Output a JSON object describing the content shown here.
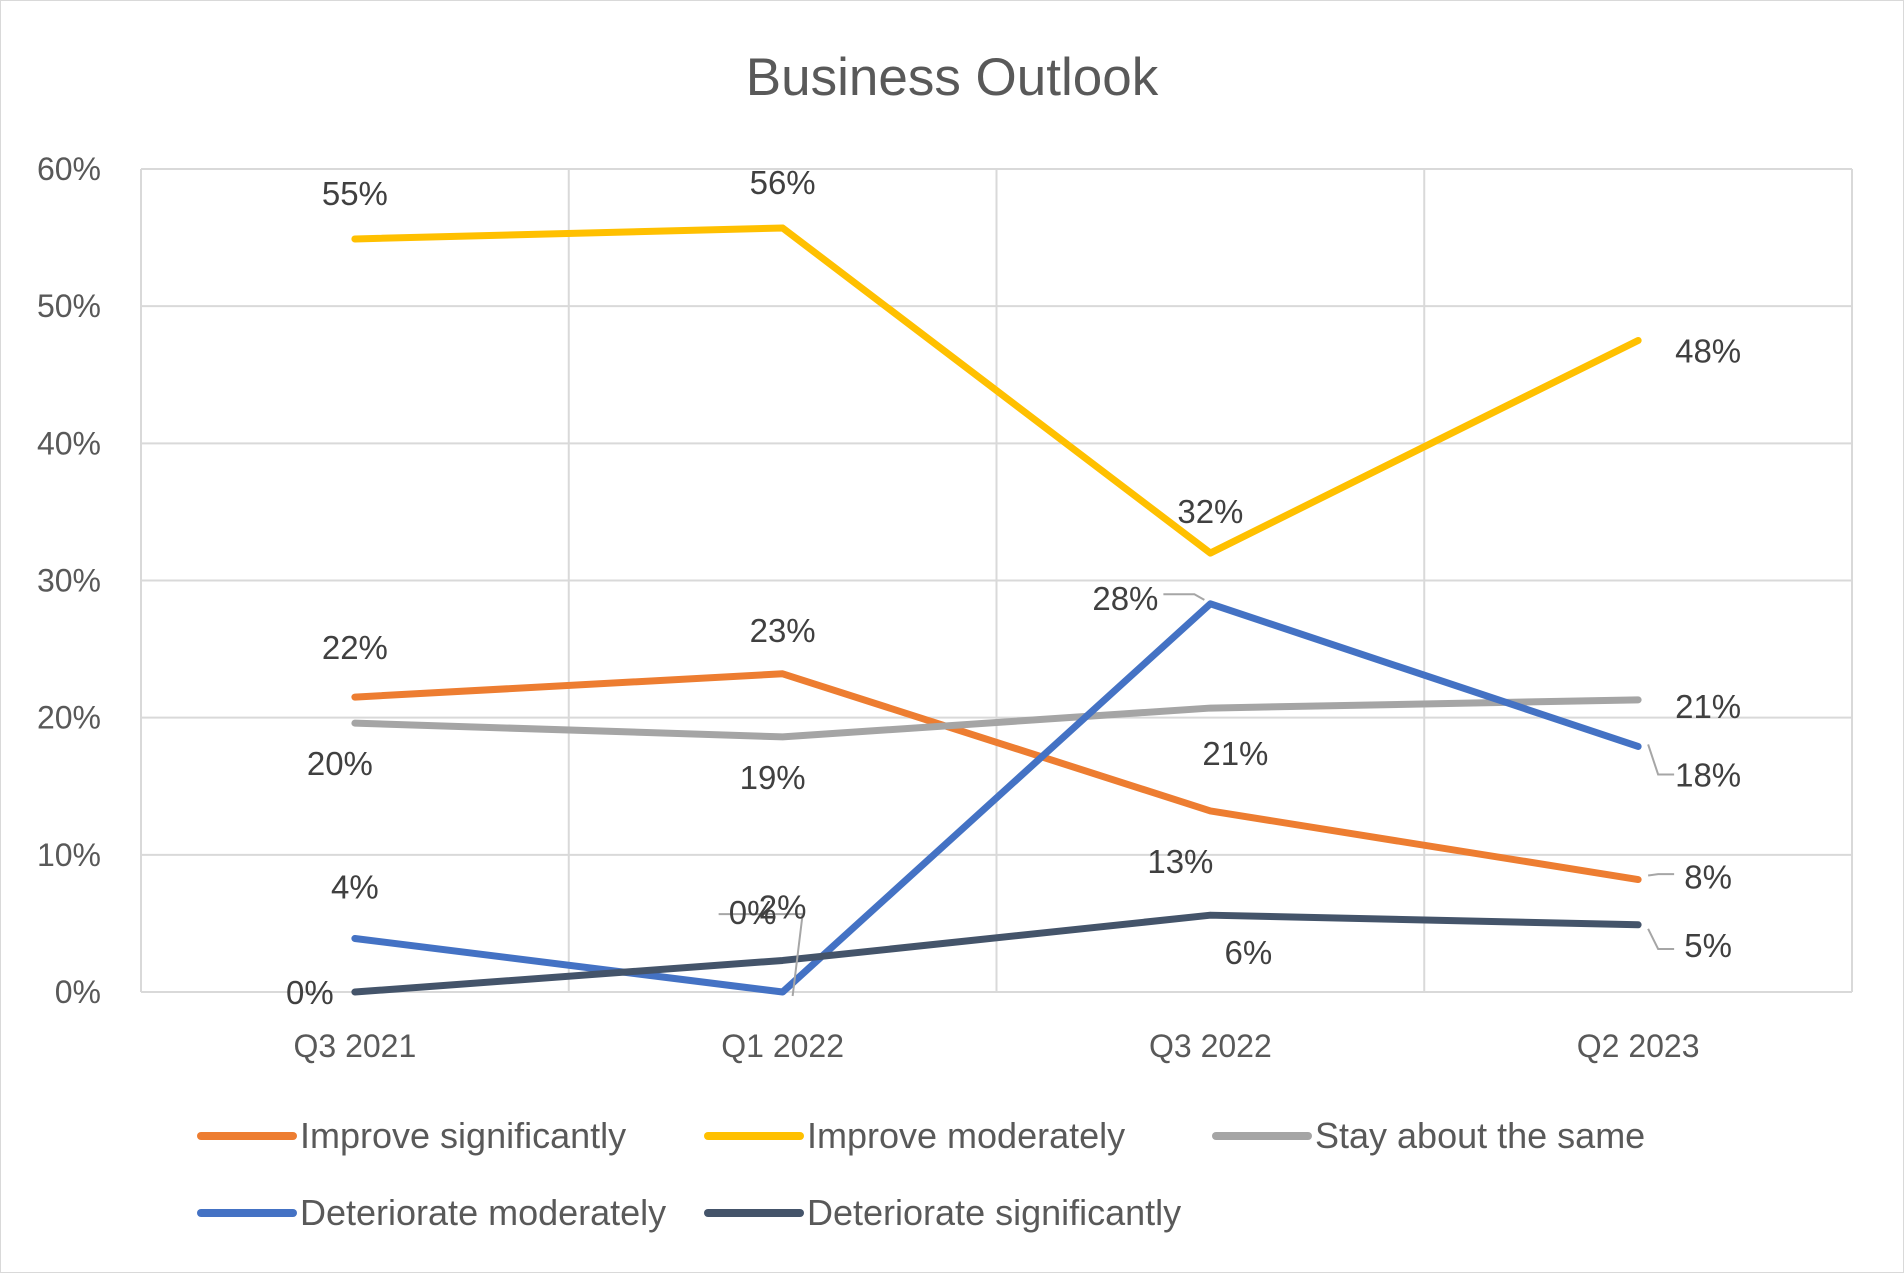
{
  "chart_data": {
    "type": "line",
    "title": "Business Outlook",
    "categories": [
      "Q3 2021",
      "Q1 2022",
      "Q3 2022",
      "Q2 2023"
    ],
    "ylim": [
      0,
      0.6
    ],
    "yticks": [
      "0%",
      "10%",
      "20%",
      "30%",
      "40%",
      "50%",
      "60%"
    ],
    "grid": true,
    "legend_position": "bottom",
    "series": [
      {
        "name": "Improve significantly",
        "color": "#ED7D31",
        "values": [
          0.215,
          0.232,
          0.132,
          0.082
        ],
        "labels": [
          "22%",
          "23%",
          "13%",
          "8%"
        ]
      },
      {
        "name": "Improve moderately",
        "color": "#FFC000",
        "values": [
          0.549,
          0.557,
          0.32,
          0.475
        ],
        "labels": [
          "55%",
          "56%",
          "32%",
          "48%"
        ]
      },
      {
        "name": "Stay about the same",
        "color": "#A5A5A5",
        "values": [
          0.196,
          0.186,
          0.207,
          0.213
        ],
        "labels": [
          "20%",
          "19%",
          "21%",
          "21%"
        ]
      },
      {
        "name": "Deteriorate moderately",
        "color": "#4472C4",
        "values": [
          0.039,
          0.0,
          0.283,
          0.179
        ],
        "labels": [
          "4%",
          "0%",
          "28%",
          "18%"
        ]
      },
      {
        "name": "Deteriorate significantly",
        "color": "#44546A",
        "values": [
          0.0,
          0.023,
          0.056,
          0.049
        ],
        "labels": [
          "0%",
          "2%",
          "6%",
          "5%"
        ]
      }
    ]
  }
}
